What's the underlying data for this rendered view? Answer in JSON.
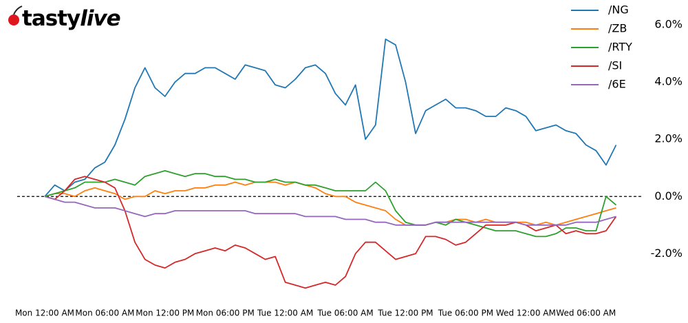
{
  "logo": {
    "brand": "tasty",
    "suffix": "live"
  },
  "chart_data": {
    "type": "line",
    "categories": [
      "Mon 12:00 AM",
      null,
      null,
      null,
      null,
      null,
      "Mon 06:00 AM",
      null,
      null,
      null,
      null,
      null,
      "Mon 12:00 PM",
      null,
      null,
      null,
      null,
      null,
      "Mon 06:00 PM",
      null,
      null,
      null,
      null,
      null,
      "Tue 12:00 AM",
      null,
      null,
      null,
      null,
      null,
      "Tue 06:00 AM",
      null,
      null,
      null,
      null,
      null,
      "Tue 12:00 PM",
      null,
      null,
      null,
      null,
      null,
      "Tue 06:00 PM",
      null,
      null,
      null,
      null,
      null,
      "Wed 12:00 AM",
      null,
      null,
      null,
      null,
      null,
      "Wed 06:00 AM",
      null,
      null,
      null
    ],
    "series": [
      {
        "name": "/NG",
        "color": "#1f77b4",
        "values": [
          0,
          0.4,
          0.2,
          0.5,
          0.6,
          1,
          1.2,
          1.8,
          2.7,
          3.8,
          4.5,
          3.8,
          3.5,
          4,
          4.3,
          4.3,
          4.5,
          4.5,
          4.3,
          4.1,
          4.6,
          4.5,
          4.4,
          3.9,
          3.8,
          4.1,
          4.5,
          4.6,
          4.3,
          3.6,
          3.2,
          3.9,
          2,
          2.5,
          5.5,
          5.3,
          4,
          2.2,
          3,
          3.2,
          3.4,
          3.1,
          3.1,
          3,
          2.8,
          2.8,
          3.1,
          3,
          2.8,
          2.3,
          2.4,
          2.5,
          2.3,
          2.2,
          1.8,
          1.6,
          1.1,
          1.8
        ]
      },
      {
        "name": "/ZB",
        "color": "#ff7f0e",
        "values": [
          0,
          0.1,
          0.1,
          0,
          0.2,
          0.3,
          0.2,
          0.1,
          -0.1,
          0,
          0,
          0.2,
          0.1,
          0.2,
          0.2,
          0.3,
          0.3,
          0.4,
          0.4,
          0.5,
          0.4,
          0.5,
          0.5,
          0.5,
          0.4,
          0.5,
          0.4,
          0.3,
          0.1,
          0,
          0,
          -0.2,
          -0.3,
          -0.4,
          -0.5,
          -0.8,
          -1,
          -1,
          -1,
          -0.9,
          -0.9,
          -0.8,
          -0.8,
          -0.9,
          -0.8,
          -0.9,
          -0.9,
          -0.9,
          -0.9,
          -1,
          -0.9,
          -1,
          -0.9,
          -0.8,
          -0.7,
          -0.6,
          -0.5,
          -0.4
        ]
      },
      {
        "name": "/RTY",
        "color": "#2ca02c",
        "values": [
          0,
          0.1,
          0.2,
          0.3,
          0.5,
          0.5,
          0.5,
          0.6,
          0.5,
          0.4,
          0.7,
          0.8,
          0.9,
          0.8,
          0.7,
          0.8,
          0.8,
          0.7,
          0.7,
          0.6,
          0.6,
          0.5,
          0.5,
          0.6,
          0.5,
          0.5,
          0.4,
          0.4,
          0.3,
          0.2,
          0.2,
          0.2,
          0.2,
          0.5,
          0.2,
          -0.5,
          -0.9,
          -1,
          -1,
          -0.9,
          -1,
          -0.8,
          -0.9,
          -1,
          -1.1,
          -1.2,
          -1.2,
          -1.2,
          -1.3,
          -1.4,
          -1.4,
          -1.3,
          -1.1,
          -1.1,
          -1.2,
          -1.2,
          0,
          -0.3
        ]
      },
      {
        "name": "/SI",
        "color": "#d62728",
        "values": [
          0,
          -0.1,
          0.2,
          0.6,
          0.7,
          0.6,
          0.5,
          0.3,
          -0.5,
          -1.6,
          -2.2,
          -2.4,
          -2.5,
          -2.3,
          -2.2,
          -2,
          -1.9,
          -1.8,
          -1.9,
          -1.7,
          -1.8,
          -2,
          -2.2,
          -2.1,
          -3,
          -3.1,
          -3.2,
          -3.1,
          -3,
          -3.1,
          -2.8,
          -2,
          -1.6,
          -1.6,
          -1.9,
          -2.2,
          -2.1,
          -2,
          -1.4,
          -1.4,
          -1.5,
          -1.7,
          -1.6,
          -1.3,
          -1,
          -1,
          -1,
          -0.9,
          -1,
          -1.2,
          -1.1,
          -1,
          -1.3,
          -1.2,
          -1.3,
          -1.3,
          -1.2,
          -0.7
        ]
      },
      {
        "name": "/6E",
        "color": "#9467bd",
        "values": [
          0,
          -0.1,
          -0.2,
          -0.2,
          -0.3,
          -0.4,
          -0.4,
          -0.4,
          -0.5,
          -0.6,
          -0.7,
          -0.6,
          -0.6,
          -0.5,
          -0.5,
          -0.5,
          -0.5,
          -0.5,
          -0.5,
          -0.5,
          -0.5,
          -0.6,
          -0.6,
          -0.6,
          -0.6,
          -0.6,
          -0.7,
          -0.7,
          -0.7,
          -0.7,
          -0.8,
          -0.8,
          -0.8,
          -0.9,
          -0.9,
          -1,
          -1,
          -1,
          -1,
          -0.9,
          -0.9,
          -0.9,
          -0.9,
          -0.9,
          -0.9,
          -0.9,
          -0.9,
          -0.9,
          -1,
          -1,
          -1,
          -1,
          -1,
          -0.9,
          -0.9,
          -0.9,
          -0.8,
          -0.7
        ]
      }
    ],
    "ylim": [
      -3.75,
      6.75
    ],
    "yticks": [
      {
        "value": -2,
        "label": "-2.0%"
      },
      {
        "value": 0,
        "label": "0.0%"
      },
      {
        "value": 2,
        "label": "2.0%"
      },
      {
        "value": 4,
        "label": "4.0%"
      },
      {
        "value": 6,
        "label": "6.0%"
      }
    ],
    "zero_line": true,
    "legend": "upper right"
  }
}
